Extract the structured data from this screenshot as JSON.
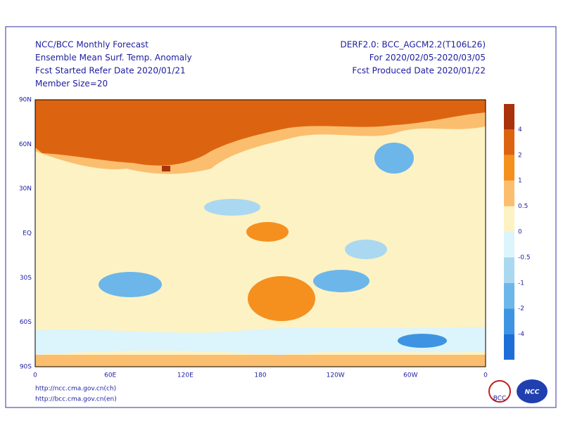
{
  "header": {
    "left": [
      "NCC/BCC Monthly Forecast",
      "Ensemble Mean Surf. Temp. Anomaly",
      "Fcst Started Refer Date 2020/01/21",
      "Member Size=20"
    ],
    "right": [
      "DERF2.0: BCC_AGCM2.2(T106L26)",
      "For 2020/02/05-2020/03/05",
      "Fcst Produced Date 2020/01/22"
    ]
  },
  "map": {
    "lat_labels": [
      "90N",
      "60N",
      "30N",
      "EQ",
      "30S",
      "60S",
      "90S"
    ],
    "lon_labels": [
      "0",
      "60E",
      "120E",
      "180",
      "120W",
      "60W",
      "0"
    ]
  },
  "colorbar": {
    "colors": [
      "#a8320c",
      "#dc6410",
      "#f5901e",
      "#fbbe6e",
      "#fdf2c4",
      "#dcf4fb",
      "#aad8f0",
      "#6cb6ea",
      "#3e94e2",
      "#1e6ed8"
    ],
    "labels": [
      "4",
      "2",
      "1",
      "0.5",
      "0",
      "-0.5",
      "-1",
      "-2",
      "-4"
    ]
  },
  "footer": {
    "links": [
      "http://ncc.cma.gov.cn(ch)",
      "http://bcc.cma.gov.cn(en)"
    ],
    "logos": [
      "BCC",
      "NCC"
    ]
  }
}
